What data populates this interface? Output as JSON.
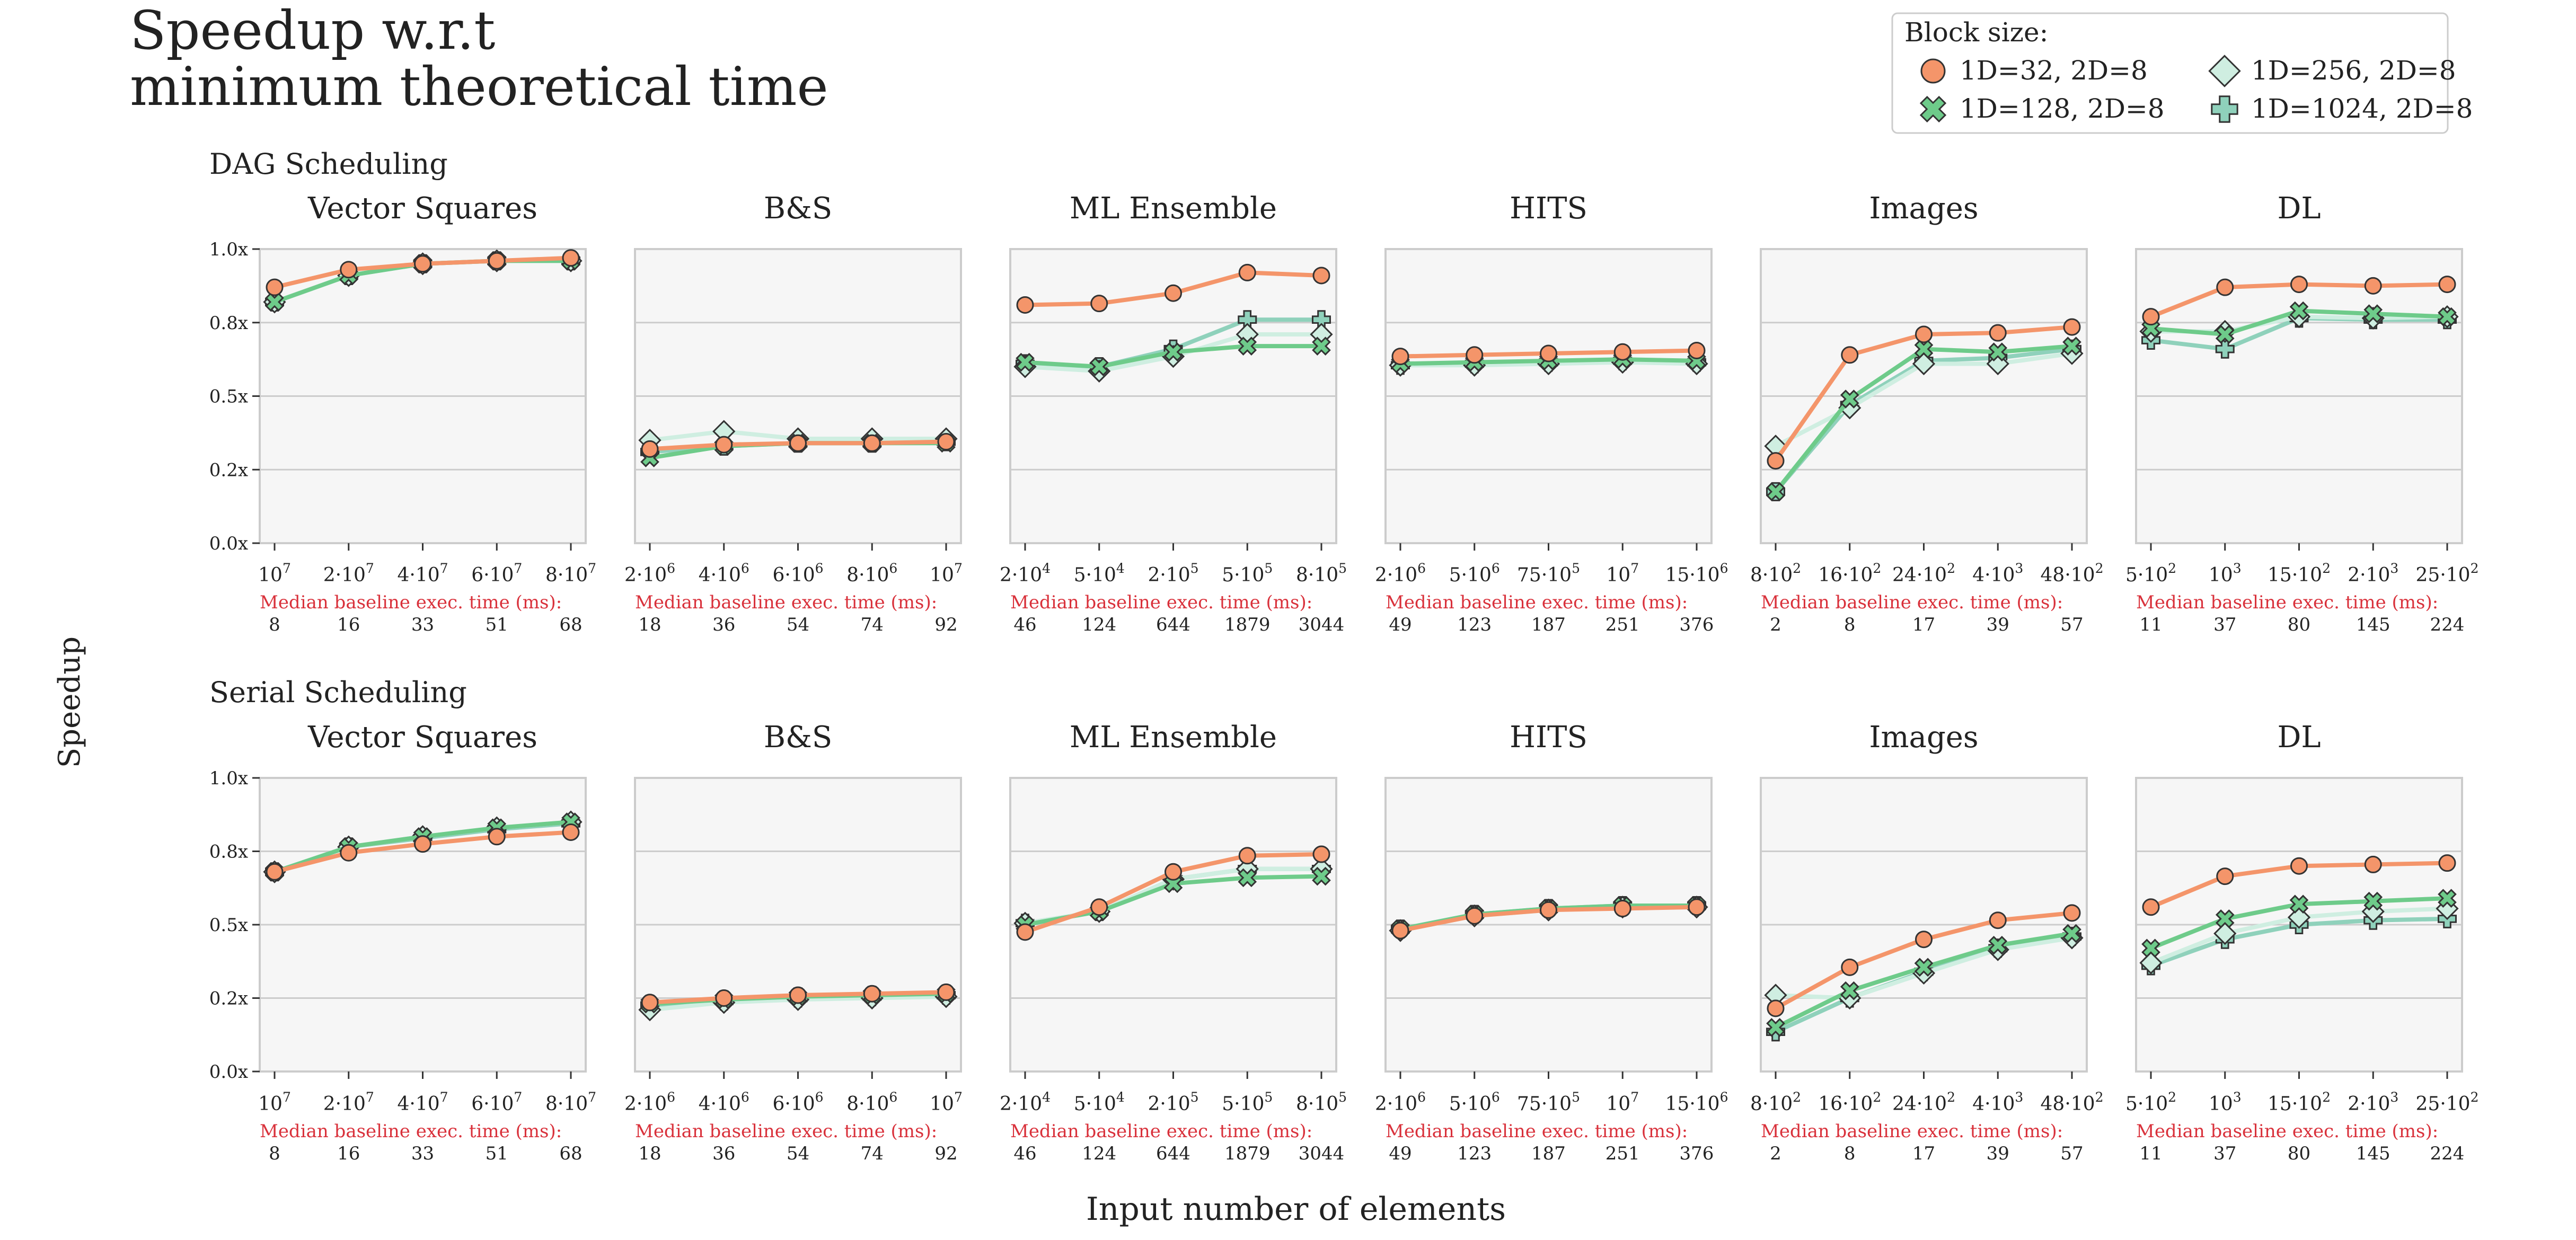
{
  "title_lines": [
    "Speedup w.r.t",
    "minimum theoretical time"
  ],
  "ylabel": "Speedup",
  "xlabel": "Input number of elements",
  "baseline_label": "Median baseline exec. time (ms):",
  "y_ticks": [
    "0.0x",
    "0.2x",
    "0.5x",
    "0.8x",
    "1.0x"
  ],
  "legend": {
    "title": "Block size:",
    "entries": [
      {
        "label": "1D=32, 2D=8",
        "color": "#f4956a",
        "marker": "circle"
      },
      {
        "label": "1D=256, 2D=8",
        "color": "#cfeee1",
        "marker": "diamond"
      },
      {
        "label": "1D=128, 2D=8",
        "color": "#6ecb8a",
        "marker": "x"
      },
      {
        "label": "1D=1024, 2D=8",
        "color": "#8fd1bb",
        "marker": "plus"
      }
    ]
  },
  "colors": {
    "panel_bg": "#f6f6f6",
    "panel_border": "#cccccc",
    "grid": "#cccccc",
    "baseline_red": "#d9313b",
    "marker_edge": "#333333"
  },
  "chart_data": [
    {
      "section": "DAG Scheduling",
      "panels": [
        {
          "title": "Vector Squares",
          "type": "line",
          "xticks": [
            "10^7",
            "2·10^7",
            "4·10^7",
            "6·10^7",
            "8·10^7"
          ],
          "baseline": [
            "8",
            "16",
            "33",
            "51",
            "68"
          ],
          "ylim": [
            0,
            1.0
          ],
          "series": [
            {
              "name": "1D=32, 2D=8",
              "values": [
                0.87,
                0.93,
                0.95,
                0.96,
                0.97
              ]
            },
            {
              "name": "1D=128, 2D=8",
              "values": [
                0.82,
                0.91,
                0.95,
                0.96,
                0.96
              ]
            },
            {
              "name": "1D=256, 2D=8",
              "values": [
                0.82,
                0.91,
                0.95,
                0.96,
                0.96
              ]
            },
            {
              "name": "1D=1024, 2D=8",
              "values": [
                0.82,
                0.91,
                0.95,
                0.96,
                0.96
              ]
            }
          ]
        },
        {
          "title": "B&S",
          "type": "line",
          "xticks": [
            "2·10^6",
            "4·10^6",
            "6·10^6",
            "8·10^6",
            "10^7"
          ],
          "baseline": [
            "18",
            "36",
            "54",
            "74",
            "92"
          ],
          "ylim": [
            0,
            1.0
          ],
          "series": [
            {
              "name": "1D=32, 2D=8",
              "values": [
                0.32,
                0.335,
                0.34,
                0.34,
                0.345
              ]
            },
            {
              "name": "1D=128, 2D=8",
              "values": [
                0.29,
                0.33,
                0.34,
                0.34,
                0.34
              ]
            },
            {
              "name": "1D=256, 2D=8",
              "values": [
                0.35,
                0.38,
                0.355,
                0.355,
                0.355
              ]
            },
            {
              "name": "1D=1024, 2D=8",
              "values": [
                0.31,
                0.33,
                0.34,
                0.34,
                0.345
              ]
            }
          ]
        },
        {
          "title": "ML Ensemble",
          "type": "line",
          "xticks": [
            "2·10^4",
            "5·10^4",
            "2·10^5",
            "5·10^5",
            "8·10^5"
          ],
          "baseline": [
            "46",
            "124",
            "644",
            "1879",
            "3044"
          ],
          "ylim": [
            0,
            1.0
          ],
          "series": [
            {
              "name": "1D=32, 2D=8",
              "values": [
                0.81,
                0.815,
                0.85,
                0.92,
                0.91
              ]
            },
            {
              "name": "1D=128, 2D=8",
              "values": [
                0.615,
                0.6,
                0.65,
                0.67,
                0.67
              ]
            },
            {
              "name": "1D=256, 2D=8",
              "values": [
                0.6,
                0.585,
                0.635,
                0.71,
                0.71
              ]
            },
            {
              "name": "1D=1024, 2D=8",
              "values": [
                0.61,
                0.6,
                0.66,
                0.76,
                0.76
              ]
            }
          ]
        },
        {
          "title": "HITS",
          "type": "line",
          "xticks": [
            "2·10^6",
            "5·10^6",
            "75·10^5",
            "10^7",
            "15·10^6"
          ],
          "baseline": [
            "49",
            "123",
            "187",
            "251",
            "376"
          ],
          "ylim": [
            0,
            1.0
          ],
          "series": [
            {
              "name": "1D=32, 2D=8",
              "values": [
                0.635,
                0.64,
                0.645,
                0.65,
                0.655
              ]
            },
            {
              "name": "1D=128, 2D=8",
              "values": [
                0.61,
                0.615,
                0.62,
                0.625,
                0.62
              ]
            },
            {
              "name": "1D=256, 2D=8",
              "values": [
                0.605,
                0.605,
                0.61,
                0.615,
                0.61
              ]
            },
            {
              "name": "1D=1024, 2D=8",
              "values": [
                0.605,
                0.61,
                0.615,
                0.62,
                0.615
              ]
            }
          ]
        },
        {
          "title": "Images",
          "type": "line",
          "xticks": [
            "8·10^2",
            "16·10^2",
            "24·10^2",
            "4·10^3",
            "48·10^2"
          ],
          "baseline": [
            "2",
            "8",
            "17",
            "39",
            "57"
          ],
          "ylim": [
            0,
            1.0
          ],
          "series": [
            {
              "name": "1D=32, 2D=8",
              "values": [
                0.28,
                0.64,
                0.71,
                0.715,
                0.735
              ]
            },
            {
              "name": "1D=128, 2D=8",
              "values": [
                0.175,
                0.49,
                0.66,
                0.65,
                0.67
              ]
            },
            {
              "name": "1D=256, 2D=8",
              "values": [
                0.33,
                0.46,
                0.61,
                0.61,
                0.645
              ]
            },
            {
              "name": "1D=1024, 2D=8",
              "values": [
                0.175,
                0.47,
                0.62,
                0.63,
                0.66
              ]
            }
          ]
        },
        {
          "title": "DL",
          "type": "line",
          "xticks": [
            "5·10^2",
            "10^3",
            "15·10^2",
            "2·10^3",
            "25·10^2"
          ],
          "baseline": [
            "11",
            "37",
            "80",
            "145",
            "224"
          ],
          "ylim": [
            0,
            1.0
          ],
          "series": [
            {
              "name": "1D=32, 2D=8",
              "values": [
                0.77,
                0.87,
                0.88,
                0.875,
                0.88
              ]
            },
            {
              "name": "1D=128, 2D=8",
              "values": [
                0.73,
                0.71,
                0.79,
                0.78,
                0.77
              ]
            },
            {
              "name": "1D=256, 2D=8",
              "values": [
                0.72,
                0.72,
                0.77,
                0.765,
                0.77
              ]
            },
            {
              "name": "1D=1024, 2D=8",
              "values": [
                0.69,
                0.66,
                0.765,
                0.76,
                0.76
              ]
            }
          ]
        }
      ]
    },
    {
      "section": "Serial Scheduling",
      "panels": [
        {
          "title": "Vector Squares",
          "type": "line",
          "xticks": [
            "10^7",
            "2·10^7",
            "4·10^7",
            "6·10^7",
            "8·10^7"
          ],
          "baseline": [
            "8",
            "16",
            "33",
            "51",
            "68"
          ],
          "ylim": [
            0,
            1.0
          ],
          "series": [
            {
              "name": "1D=32, 2D=8",
              "values": [
                0.68,
                0.745,
                0.775,
                0.8,
                0.815
              ]
            },
            {
              "name": "1D=128, 2D=8",
              "values": [
                0.68,
                0.765,
                0.8,
                0.83,
                0.85
              ]
            },
            {
              "name": "1D=256, 2D=8",
              "values": [
                0.68,
                0.765,
                0.8,
                0.83,
                0.85
              ]
            },
            {
              "name": "1D=1024, 2D=8",
              "values": [
                0.68,
                0.765,
                0.795,
                0.825,
                0.845
              ]
            }
          ]
        },
        {
          "title": "B&S",
          "type": "line",
          "xticks": [
            "2·10^6",
            "4·10^6",
            "6·10^6",
            "8·10^6",
            "10^7"
          ],
          "baseline": [
            "18",
            "36",
            "54",
            "74",
            "92"
          ],
          "ylim": [
            0,
            1.0
          ],
          "series": [
            {
              "name": "1D=32, 2D=8",
              "values": [
                0.235,
                0.25,
                0.26,
                0.265,
                0.27
              ]
            },
            {
              "name": "1D=128, 2D=8",
              "values": [
                0.23,
                0.245,
                0.255,
                0.26,
                0.265
              ]
            },
            {
              "name": "1D=256, 2D=8",
              "values": [
                0.21,
                0.235,
                0.245,
                0.25,
                0.255
              ]
            },
            {
              "name": "1D=1024, 2D=8",
              "values": [
                0.225,
                0.24,
                0.25,
                0.255,
                0.26
              ]
            }
          ]
        },
        {
          "title": "ML Ensemble",
          "type": "line",
          "xticks": [
            "2·10^4",
            "5·10^4",
            "2·10^5",
            "5·10^5",
            "8·10^5"
          ],
          "baseline": [
            "46",
            "124",
            "644",
            "1879",
            "3044"
          ],
          "ylim": [
            0,
            1.0
          ],
          "series": [
            {
              "name": "1D=32, 2D=8",
              "values": [
                0.475,
                0.56,
                0.68,
                0.735,
                0.74
              ]
            },
            {
              "name": "1D=128, 2D=8",
              "values": [
                0.5,
                0.545,
                0.64,
                0.66,
                0.665
              ]
            },
            {
              "name": "1D=256, 2D=8",
              "values": [
                0.505,
                0.545,
                0.655,
                0.69,
                0.69
              ]
            },
            {
              "name": "1D=1024, 2D=8",
              "values": [
                0.505,
                0.545,
                0.655,
                0.69,
                0.69
              ]
            }
          ]
        },
        {
          "title": "HITS",
          "type": "line",
          "xticks": [
            "2·10^6",
            "5·10^6",
            "75·10^5",
            "10^7",
            "15·10^6"
          ],
          "baseline": [
            "49",
            "123",
            "187",
            "251",
            "376"
          ],
          "ylim": [
            0,
            1.0
          ],
          "series": [
            {
              "name": "1D=32, 2D=8",
              "values": [
                0.48,
                0.53,
                0.55,
                0.555,
                0.56
              ]
            },
            {
              "name": "1D=128, 2D=8",
              "values": [
                0.485,
                0.535,
                0.555,
                0.565,
                0.565
              ]
            },
            {
              "name": "1D=256, 2D=8",
              "values": [
                0.48,
                0.53,
                0.55,
                0.56,
                0.56
              ]
            },
            {
              "name": "1D=1024, 2D=8",
              "values": [
                0.485,
                0.535,
                0.555,
                0.565,
                0.565
              ]
            }
          ]
        },
        {
          "title": "Images",
          "type": "line",
          "xticks": [
            "8·10^2",
            "16·10^2",
            "24·10^2",
            "4·10^3",
            "48·10^2"
          ],
          "baseline": [
            "2",
            "8",
            "17",
            "39",
            "57"
          ],
          "ylim": [
            0,
            1.0
          ],
          "series": [
            {
              "name": "1D=32, 2D=8",
              "values": [
                0.215,
                0.355,
                0.45,
                0.515,
                0.54
              ]
            },
            {
              "name": "1D=128, 2D=8",
              "values": [
                0.15,
                0.275,
                0.355,
                0.43,
                0.47
              ]
            },
            {
              "name": "1D=256, 2D=8",
              "values": [
                0.26,
                0.25,
                0.335,
                0.415,
                0.455
              ]
            },
            {
              "name": "1D=1024, 2D=8",
              "values": [
                0.135,
                0.25,
                0.34,
                0.42,
                0.46
              ]
            }
          ]
        },
        {
          "title": "DL",
          "type": "line",
          "xticks": [
            "5·10^2",
            "10^3",
            "15·10^2",
            "2·10^3",
            "25·10^2"
          ],
          "baseline": [
            "11",
            "37",
            "80",
            "145",
            "224"
          ],
          "ylim": [
            0,
            1.0
          ],
          "series": [
            {
              "name": "1D=32, 2D=8",
              "values": [
                0.56,
                0.665,
                0.7,
                0.705,
                0.71
              ]
            },
            {
              "name": "1D=128, 2D=8",
              "values": [
                0.42,
                0.52,
                0.57,
                0.58,
                0.59
              ]
            },
            {
              "name": "1D=256, 2D=8",
              "values": [
                0.37,
                0.47,
                0.525,
                0.545,
                0.555
              ]
            },
            {
              "name": "1D=1024, 2D=8",
              "values": [
                0.36,
                0.45,
                0.5,
                0.515,
                0.52
              ]
            }
          ]
        }
      ]
    }
  ]
}
